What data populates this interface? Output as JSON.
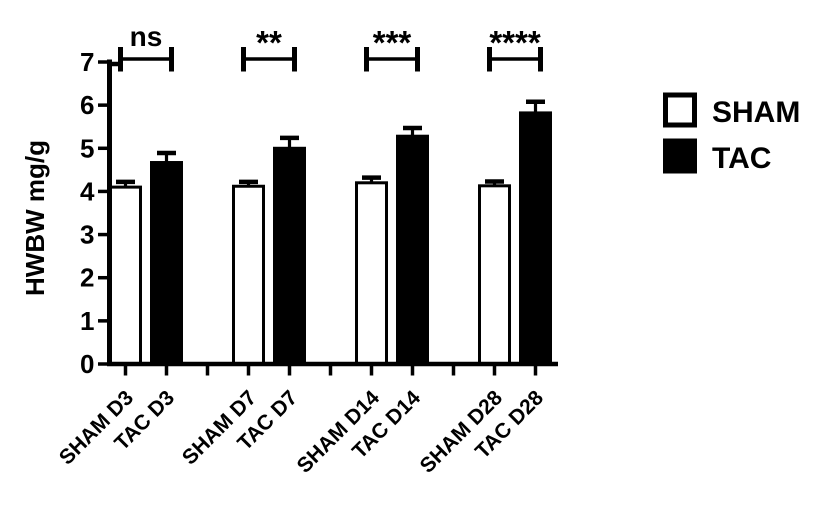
{
  "figure": {
    "background": "#ffffff",
    "ink_color": "#000000"
  },
  "chart_data": {
    "type": "bar",
    "title": "",
    "xlabel": "",
    "ylabel": "HWBW mg/g",
    "ylim": [
      0,
      7
    ],
    "ytick_step": 1,
    "yticks": [
      0,
      1,
      2,
      3,
      4,
      5,
      6,
      7
    ],
    "grid": false,
    "legend_position": "right",
    "categories": [
      "SHAM D3",
      "TAC D3",
      "SHAM D7",
      "TAC D7",
      "SHAM D14",
      "TAC D14",
      "SHAM D28",
      "TAC D28"
    ],
    "bars": [
      {
        "label": "SHAM D3",
        "group": "SHAM",
        "value": 4.1,
        "error": 0.12,
        "fill": "#ffffff",
        "slot": 0
      },
      {
        "label": "TAC D3",
        "group": "TAC",
        "value": 4.67,
        "error": 0.22,
        "fill": "#000000",
        "slot": 1
      },
      {
        "label": "SHAM D7",
        "group": "SHAM",
        "value": 4.12,
        "error": 0.1,
        "fill": "#ffffff",
        "slot": 3
      },
      {
        "label": "TAC D7",
        "group": "TAC",
        "value": 5.0,
        "error": 0.24,
        "fill": "#000000",
        "slot": 4
      },
      {
        "label": "SHAM D14",
        "group": "SHAM",
        "value": 4.2,
        "error": 0.12,
        "fill": "#ffffff",
        "slot": 6
      },
      {
        "label": "TAC D14",
        "group": "TAC",
        "value": 5.28,
        "error": 0.19,
        "fill": "#000000",
        "slot": 7
      },
      {
        "label": "SHAM D28",
        "group": "SHAM",
        "value": 4.13,
        "error": 0.1,
        "fill": "#ffffff",
        "slot": 9
      },
      {
        "label": "TAC D28",
        "group": "TAC",
        "value": 5.82,
        "error": 0.26,
        "fill": "#000000",
        "slot": 10
      }
    ],
    "significance_brackets": [
      {
        "label": "ns",
        "left_slot": 0,
        "right_slot": 1
      },
      {
        "label": "**",
        "left_slot": 3,
        "right_slot": 4
      },
      {
        "label": "***",
        "left_slot": 6,
        "right_slot": 7
      },
      {
        "label": "****",
        "left_slot": 9,
        "right_slot": 10
      }
    ],
    "legend": {
      "entries": [
        {
          "label": "SHAM",
          "fill": "#ffffff"
        },
        {
          "label": "TAC",
          "fill": "#000000"
        }
      ]
    }
  }
}
